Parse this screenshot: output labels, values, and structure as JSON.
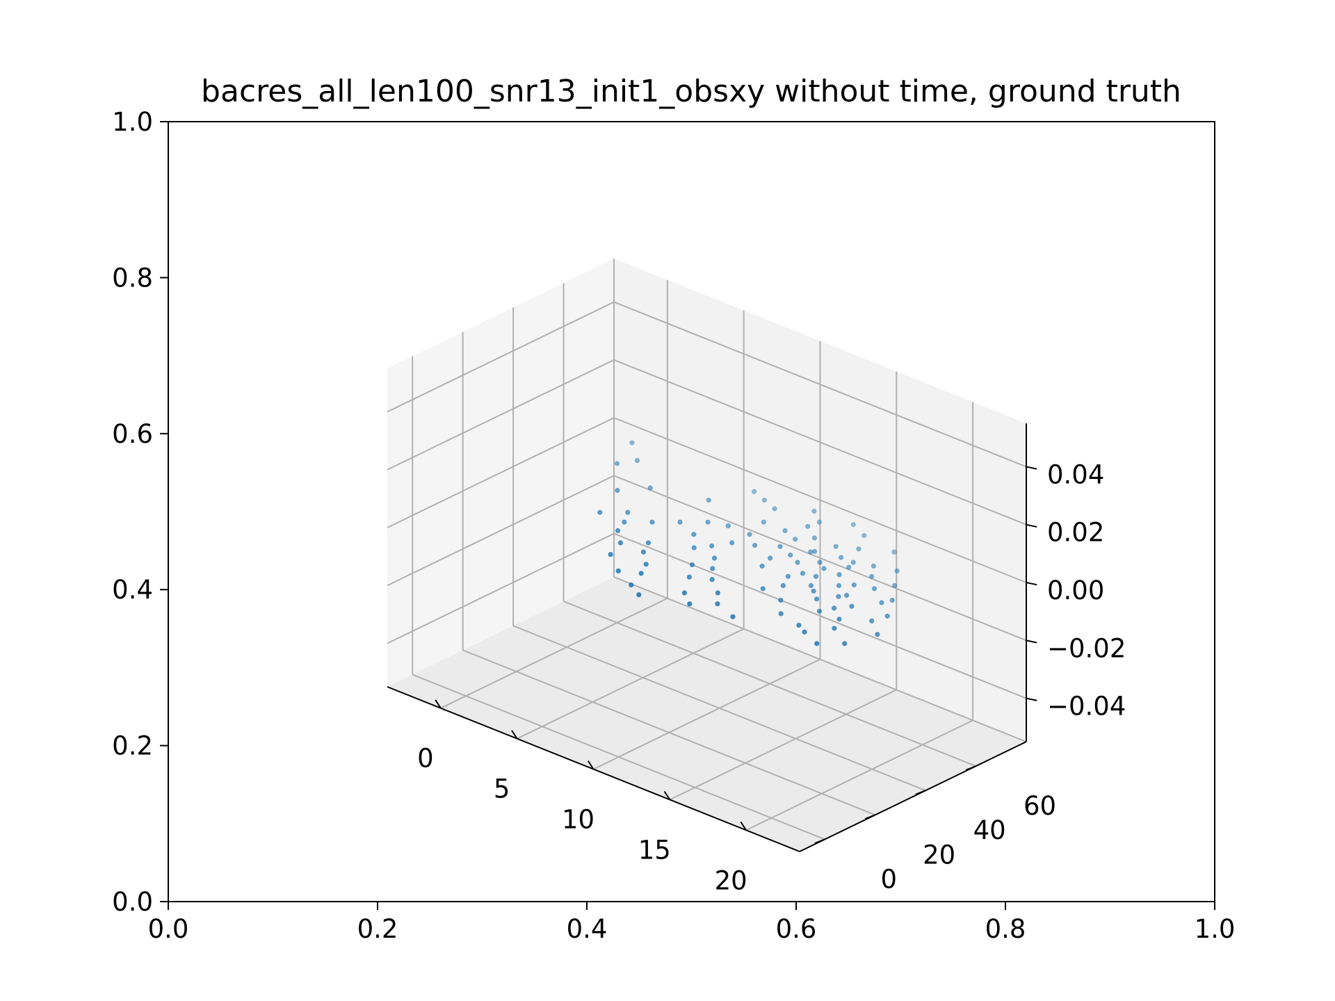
{
  "chart_data": {
    "type": "scatter",
    "title": "bacres_all_len100_snr13_init1_obsxy without time, ground truth",
    "outer_axes": {
      "xlim": [
        0.0,
        1.0
      ],
      "ylim": [
        0.0,
        1.0
      ],
      "xticks": [
        "0.0",
        "0.2",
        "0.4",
        "0.6",
        "0.8",
        "1.0"
      ],
      "yticks": [
        "0.0",
        "0.2",
        "0.4",
        "0.6",
        "0.8",
        "1.0"
      ]
    },
    "axes3d": {
      "x_ticks": [
        "0",
        "5",
        "10",
        "15",
        "20"
      ],
      "y_ticks": [
        "0",
        "20",
        "40",
        "60"
      ],
      "z_ticks": [
        "−0.04",
        "−0.02",
        "0.00",
        "0.02",
        "0.04"
      ],
      "xlim": [
        -3.5,
        23.5
      ],
      "ylim": [
        -10,
        80
      ],
      "zlim": [
        -0.055,
        0.055
      ],
      "grid": true,
      "pane_colors": [
        "#f2f2f2",
        "#f5f5f5",
        "#ebebeb"
      ]
    },
    "series": [
      {
        "color": "#1f77b4",
        "points": [
          [
            3.0,
            55.0,
            0
          ],
          [
            8.0,
            70.0,
            0
          ],
          [
            10.0,
            45.0,
            0
          ],
          [
            11.0,
            60.0,
            0
          ],
          [
            12.0,
            58.0,
            0
          ],
          [
            12.5,
            45.0,
            0
          ],
          [
            13.0,
            50.0,
            0
          ],
          [
            13.5,
            55.0,
            0
          ],
          [
            14.0,
            62.0,
            0
          ],
          [
            14.5,
            40.0,
            0
          ],
          [
            15.0,
            58.0,
            0
          ],
          [
            15.2,
            50.0,
            0
          ],
          [
            15.5,
            45.0,
            0
          ],
          [
            16.0,
            55.0,
            0
          ],
          [
            16.5,
            38.0,
            0
          ],
          [
            17.0,
            45.0,
            0
          ],
          [
            17.2,
            35.0,
            0
          ],
          [
            17.5,
            48.0,
            0
          ],
          [
            18.0,
            42.0,
            0
          ],
          [
            18.5,
            34.0,
            0
          ],
          [
            19.0,
            38.0,
            0
          ],
          [
            19.5,
            30.0,
            0
          ],
          [
            20.0,
            25.0,
            0
          ],
          [
            7.0,
            72.0,
            0
          ],
          [
            9.0,
            68.0,
            0
          ],
          [
            11.5,
            66.0,
            0
          ],
          [
            13.0,
            75.0,
            0
          ],
          [
            14.2,
            72.0,
            0
          ],
          [
            6.0,
            60.0,
            0
          ],
          [
            10.0,
            52.0,
            0
          ],
          [
            12.0,
            52.0,
            0
          ],
          [
            13.8,
            48.0,
            0
          ],
          [
            14.8,
            44.0,
            0
          ],
          [
            16.2,
            50.0,
            0
          ],
          [
            17.8,
            40.0,
            0
          ],
          [
            11.0,
            48.0,
            0
          ],
          [
            12.8,
            40.0,
            0
          ],
          [
            14.5,
            30.0,
            0
          ],
          [
            16.0,
            28.0,
            0
          ],
          [
            17.0,
            22.0,
            0
          ],
          [
            18.5,
            20.0,
            0
          ],
          [
            19.2,
            18.0,
            0
          ],
          [
            20.5,
            15.0,
            0
          ],
          [
            9.5,
            40.0,
            0
          ],
          [
            10.5,
            35.0,
            0
          ],
          [
            11.2,
            30.0,
            0
          ],
          [
            12.0,
            25.0,
            0
          ],
          [
            13.2,
            20.0,
            0
          ],
          [
            14.0,
            15.0,
            0
          ],
          [
            15.5,
            12.0,
            0
          ],
          [
            8.0,
            42.0,
            0
          ],
          [
            9.0,
            36.0,
            0
          ],
          [
            10.2,
            28.0,
            0
          ],
          [
            11.0,
            22.0,
            0
          ],
          [
            12.0,
            14.0,
            0
          ],
          [
            13.0,
            10.0,
            0
          ],
          [
            7.0,
            30.0,
            0
          ],
          [
            7.5,
            25.0,
            0
          ],
          [
            8.5,
            20.0,
            0
          ],
          [
            9.0,
            15.0,
            0
          ],
          [
            6.0,
            25.0,
            0
          ],
          [
            6.5,
            18.0,
            0
          ],
          [
            8.0,
            12.0,
            0
          ],
          [
            9.5,
            8.0,
            0
          ],
          [
            10.5,
            5.0,
            0
          ],
          [
            4.0,
            40.0,
            0
          ],
          [
            5.0,
            30.0,
            0
          ],
          [
            3.0,
            35.0,
            0
          ],
          [
            2.0,
            48.0,
            0
          ],
          [
            0.5,
            65.0,
            0
          ],
          [
            -1.0,
            72.0,
            0
          ],
          [
            0.0,
            60.0,
            0
          ],
          [
            15.0,
            65.0,
            0
          ],
          [
            16.5,
            70.0,
            0
          ],
          [
            18.0,
            62.0,
            0
          ],
          [
            19.0,
            55.0,
            0
          ],
          [
            20.0,
            48.0,
            0
          ],
          [
            21.0,
            40.0,
            0
          ],
          [
            22.0,
            30.0,
            0
          ],
          [
            21.5,
            20.0,
            0
          ],
          [
            18.5,
            50.0,
            0
          ],
          [
            17.5,
            55.0,
            0
          ],
          [
            16.8,
            60.0,
            0
          ],
          [
            15.8,
            58.0,
            0
          ],
          [
            14.6,
            52.0,
            0
          ],
          [
            13.6,
            56.0,
            0
          ],
          [
            12.6,
            62.0,
            0
          ],
          [
            11.6,
            70.0,
            0
          ],
          [
            10.6,
            74.0,
            0
          ],
          [
            9.6,
            60.0,
            0
          ],
          [
            8.6,
            52.0,
            0
          ],
          [
            7.6,
            50.0,
            0
          ],
          [
            6.6,
            45.0,
            0
          ],
          [
            5.6,
            40.0,
            0
          ],
          [
            4.6,
            35.0,
            0
          ],
          [
            19.8,
            45.0,
            0
          ],
          [
            20.8,
            35.0,
            0
          ],
          [
            18.2,
            30.0,
            0
          ],
          [
            16.0,
            40.0,
            0
          ],
          [
            15.0,
            35.0,
            0
          ]
        ]
      }
    ]
  }
}
